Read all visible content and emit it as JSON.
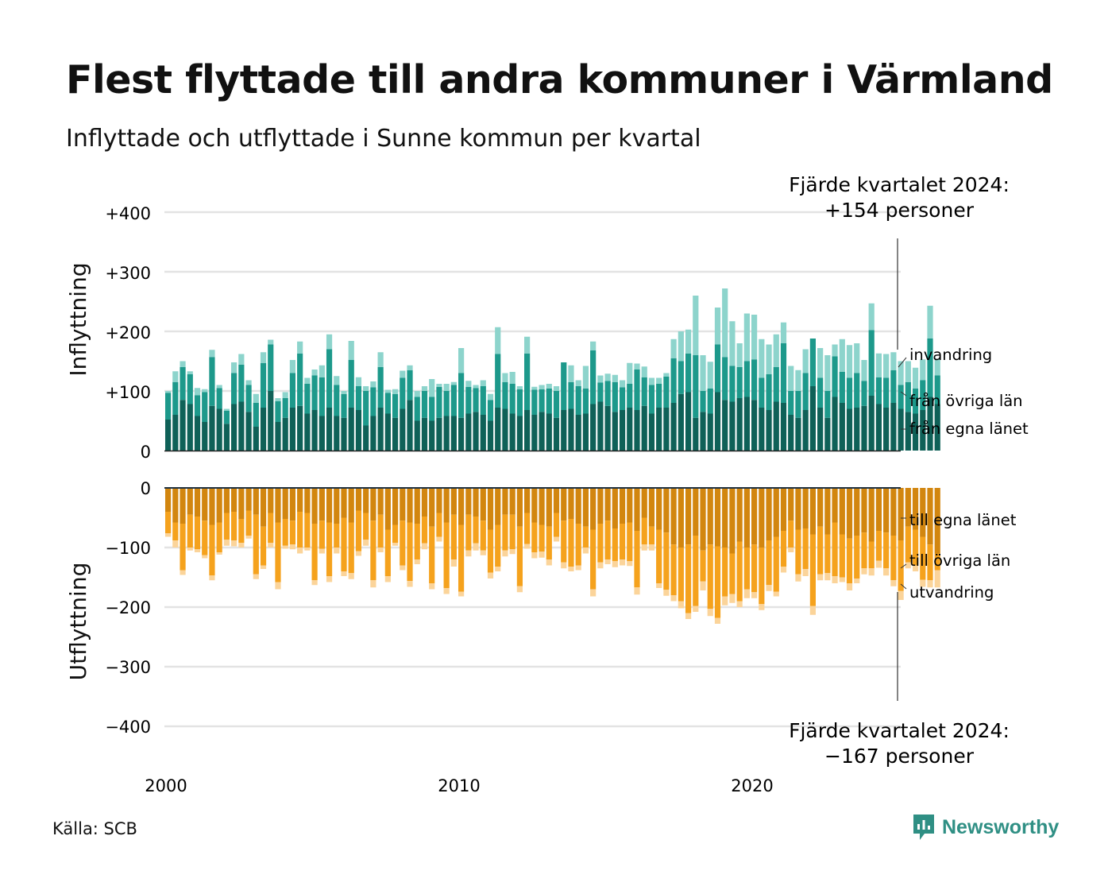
{
  "title": "Flest flyttade till andra kommuner i Värmland",
  "subtitle": "Inflyttade och utflyttade i Sunne kommun per kvartal",
  "source": "Källa: SCB",
  "brand": "Newsworthy",
  "colors": {
    "in_own": "#0f6158",
    "in_other": "#1d998b",
    "in_immigration": "#8dd4cc",
    "out_own": "#d2860f",
    "out_other": "#f5a21d",
    "out_emigration": "#fbd49a",
    "grid": "#e3e3e3",
    "axis": "#1f3140",
    "brand": "#2f8f84"
  },
  "annotations": {
    "in_label": [
      "Fjärde kvartalet 2024:",
      "+154 personer"
    ],
    "out_label": [
      "Fjärde kvartalet 2024:",
      "−167 personer"
    ]
  },
  "chart_data": {
    "type": "bar",
    "stacked": true,
    "x_start": "2000 Q1",
    "x_ticks": [
      "2000",
      "2010",
      "2020"
    ],
    "in_panel": {
      "ylabel": "Inflyttning",
      "ylim": [
        0,
        400
      ],
      "yticks": [
        "0",
        "+100",
        "+200",
        "+300",
        "+400"
      ],
      "series": [
        {
          "name": "från egna länet",
          "values": [
            52,
            60,
            85,
            78,
            58,
            48,
            75,
            70,
            45,
            78,
            82,
            65,
            40,
            72,
            100,
            48,
            55,
            72,
            75,
            62,
            68,
            58,
            72,
            58,
            55,
            72,
            68,
            42,
            58,
            72,
            62,
            55,
            70,
            85,
            50,
            55,
            50,
            55,
            58,
            58,
            55,
            62,
            65,
            60,
            50,
            72,
            70,
            62,
            58,
            68,
            60,
            65,
            62,
            55,
            68,
            70,
            60,
            62,
            78,
            82,
            75,
            65,
            68,
            72,
            68,
            75,
            62,
            72,
            72,
            80,
            95,
            98,
            55,
            65,
            62,
            98,
            85,
            82,
            88,
            90,
            85,
            72,
            68,
            82,
            80,
            60,
            55,
            68,
            108,
            72,
            55,
            90,
            80,
            70,
            72,
            75,
            92,
            78,
            72,
            80,
            70,
            65,
            62,
            68,
            90,
            78
          ]
        },
        {
          "name": "från övriga län",
          "values": [
            45,
            55,
            55,
            50,
            35,
            50,
            82,
            35,
            22,
            52,
            62,
            45,
            40,
            75,
            78,
            35,
            33,
            58,
            88,
            50,
            58,
            65,
            98,
            52,
            40,
            80,
            40,
            58,
            48,
            68,
            35,
            40,
            52,
            50,
            40,
            45,
            40,
            52,
            42,
            52,
            75,
            45,
            40,
            48,
            35,
            90,
            45,
            50,
            45,
            95,
            42,
            38,
            42,
            45,
            80,
            45,
            48,
            42,
            90,
            32,
            42,
            50,
            38,
            40,
            68,
            48,
            48,
            40,
            52,
            75,
            55,
            65,
            105,
            35,
            42,
            80,
            72,
            60,
            52,
            60,
            68,
            50,
            60,
            58,
            100,
            40,
            45,
            62,
            80,
            50,
            45,
            68,
            52,
            52,
            58,
            42,
            110,
            45,
            50,
            55,
            40,
            50,
            42,
            50,
            98,
            48
          ]
        },
        {
          "name": "invandring",
          "values": [
            3,
            18,
            10,
            5,
            12,
            5,
            12,
            5,
            3,
            18,
            18,
            8,
            15,
            18,
            8,
            5,
            10,
            22,
            20,
            10,
            10,
            20,
            25,
            15,
            5,
            32,
            15,
            8,
            10,
            25,
            5,
            8,
            12,
            8,
            10,
            8,
            30,
            5,
            12,
            5,
            42,
            10,
            5,
            10,
            10,
            45,
            15,
            20,
            5,
            28,
            5,
            7,
            8,
            8,
            0,
            28,
            10,
            38,
            15,
            12,
            12,
            12,
            12,
            35,
            10,
            18,
            12,
            10,
            6,
            32,
            50,
            40,
            100,
            60,
            45,
            62,
            115,
            75,
            40,
            80,
            75,
            65,
            50,
            55,
            35,
            42,
            35,
            40,
            0,
            50,
            60,
            20,
            55,
            55,
            50,
            35,
            45,
            40,
            40,
            30,
            40,
            35,
            35,
            35,
            55,
            28
          ]
        }
      ]
    },
    "out_panel": {
      "ylabel": "Utflyttning",
      "ylim": [
        -400,
        0
      ],
      "yticks": [
        "0",
        "−100",
        "−200",
        "−300",
        "−400"
      ],
      "series": [
        {
          "name": "till egna länet",
          "values": [
            -40,
            -58,
            -60,
            -45,
            -48,
            -55,
            -62,
            -58,
            -42,
            -40,
            -52,
            -38,
            -45,
            -65,
            -42,
            -58,
            -52,
            -55,
            -40,
            -42,
            -60,
            -55,
            -58,
            -60,
            -50,
            -58,
            -38,
            -42,
            -55,
            -45,
            -70,
            -62,
            -55,
            -58,
            -60,
            -48,
            -65,
            -42,
            -58,
            -45,
            -62,
            -45,
            -48,
            -55,
            -70,
            -62,
            -45,
            -45,
            -65,
            -42,
            -58,
            -62,
            -65,
            -42,
            -55,
            -52,
            -60,
            -65,
            -70,
            -60,
            -55,
            -68,
            -60,
            -58,
            -72,
            -50,
            -65,
            -70,
            -75,
            -95,
            -100,
            -95,
            -80,
            -105,
            -95,
            -98,
            -100,
            -110,
            -90,
            -100,
            -95,
            -100,
            -88,
            -82,
            -72,
            -55,
            -70,
            -68,
            -78,
            -65,
            -78,
            -58,
            -78,
            -85,
            -80,
            -75,
            -90,
            -72,
            -75,
            -80,
            -88,
            -65,
            -70,
            -82,
            -95,
            -110
          ]
        },
        {
          "name": "till övriga län",
          "values": [
            -36,
            -30,
            -78,
            -55,
            -55,
            -58,
            -85,
            -50,
            -45,
            -48,
            -40,
            -42,
            -100,
            -65,
            -50,
            -100,
            -45,
            -40,
            -60,
            -58,
            -95,
            -47,
            -90,
            -40,
            -90,
            -85,
            -68,
            -45,
            -100,
            -55,
            -78,
            -30,
            -75,
            -98,
            -60,
            -45,
            -95,
            -40,
            -110,
            -75,
            -112,
            -60,
            -45,
            -50,
            -72,
            -70,
            -60,
            -58,
            -100,
            -52,
            -50,
            -45,
            -55,
            -40,
            -70,
            -80,
            -70,
            -35,
            -100,
            -65,
            -65,
            -55,
            -60,
            -65,
            -95,
            -45,
            -30,
            -90,
            -96,
            -85,
            -90,
            -115,
            -118,
            -52,
            -108,
            -120,
            -82,
            -68,
            -100,
            -70,
            -80,
            -95,
            -75,
            -92,
            -60,
            -45,
            -75,
            -68,
            -120,
            -80,
            -65,
            -90,
            -72,
            -75,
            -72,
            -60,
            -45,
            -50,
            -60,
            -75,
            -85,
            -60,
            -60,
            -72,
            -60,
            -28
          ]
        },
        {
          "name": "utvandring",
          "values": [
            -6,
            -12,
            -8,
            -5,
            -5,
            -5,
            -8,
            -4,
            -10,
            -10,
            -8,
            -5,
            -8,
            -6,
            -8,
            -12,
            -5,
            -8,
            -10,
            -5,
            -8,
            -8,
            -10,
            -10,
            -8,
            -10,
            -8,
            -10,
            -12,
            -8,
            -10,
            -5,
            -8,
            -10,
            -8,
            -10,
            -10,
            -8,
            -10,
            -12,
            -8,
            -10,
            -12,
            -8,
            -10,
            -8,
            -10,
            -8,
            -10,
            -8,
            -10,
            -10,
            -10,
            -8,
            -10,
            -8,
            -8,
            -10,
            -12,
            -10,
            -8,
            -10,
            -10,
            -8,
            -12,
            -10,
            -10,
            -8,
            -10,
            -10,
            -12,
            -10,
            -10,
            -15,
            -12,
            -10,
            -15,
            -15,
            -10,
            -15,
            -10,
            -10,
            -10,
            -8,
            -10,
            -8,
            -12,
            -12,
            -15,
            -10,
            -12,
            -12,
            -8,
            -12,
            -8,
            -10,
            -12,
            -12,
            -12,
            -10,
            -15,
            -10,
            -10,
            -12,
            -12,
            -29
          ]
        }
      ]
    },
    "legend": "inline-right"
  }
}
